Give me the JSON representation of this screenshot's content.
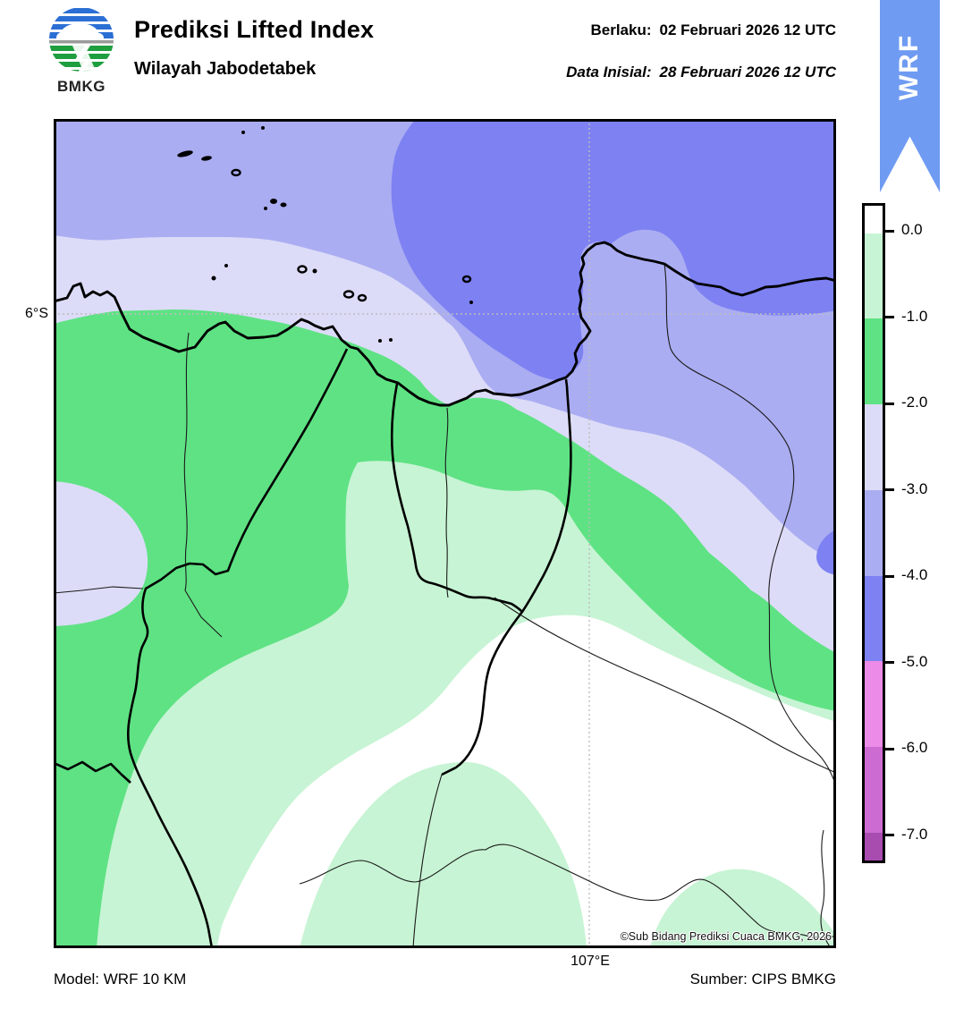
{
  "header": {
    "logo_text": "BMKG",
    "title": "Prediksi Lifted Index",
    "subtitle": "Wilayah Jabodetabek",
    "valid_label": "Berlaku:",
    "valid_value": "02 Februari 2026 12 UTC",
    "init_label": "Data Inisial:",
    "init_value": "28 Februari 2026 12 UTC",
    "ribbon_label": "WRF",
    "ribbon_color": "#6f9bf2"
  },
  "map": {
    "lat_label": "6°S",
    "lon_label": "107°E",
    "copyright": "©Sub Bidang Prediksi Cuaca BMKG, 2026"
  },
  "footer": {
    "model": "Model: WRF 10 KM",
    "source": "Sumber: CIPS BMKG"
  },
  "colorbar": {
    "tick_labels": [
      "0.0",
      "-1.0",
      "-2.0",
      "-3.0",
      "-4.0",
      "-5.0",
      "-6.0",
      "-7.0"
    ],
    "segments": [
      {
        "range": "> 0.0",
        "color": "#ffffff"
      },
      {
        "range": "0.0 to -1.0",
        "color": "#c7f4d4"
      },
      {
        "range": "-1.0 to -2.0",
        "color": "#5fe284"
      },
      {
        "range": "-2.0 to -3.0",
        "color": "#dcdcf8"
      },
      {
        "range": "-3.0 to -4.0",
        "color": "#abadf2"
      },
      {
        "range": "-4.0 to -5.0",
        "color": "#7d81f2"
      },
      {
        "range": "-5.0 to -6.0",
        "color": "#ec8be8"
      },
      {
        "range": "-6.0 to -7.0",
        "color": "#cc6bd1"
      },
      {
        "range": "< -7.0",
        "color": "#a84caf"
      }
    ]
  },
  "chart_data": {
    "type": "heatmap",
    "title": "Prediksi Lifted Index",
    "region": "Wilayah Jabodetabek",
    "legend_title_values": [
      0.0,
      -1.0,
      -2.0,
      -3.0,
      -4.0,
      -5.0,
      -6.0,
      -7.0
    ],
    "level_colors": [
      "#ffffff",
      "#c7f4d4",
      "#5fe284",
      "#dcdcf8",
      "#abadf2",
      "#7d81f2",
      "#ec8be8",
      "#cc6bd1",
      "#a84caf"
    ],
    "graticule": {
      "lat": "6°S",
      "lon": "107°E"
    },
    "values_pattern": "Lifted index -3 to -5 over the Java Sea (north/northeast), -1 to -3 along the coast and northern Jabodetabek, 0 to -2 over central Jabodetabek, > 0 (stable) over the southern inland area"
  }
}
